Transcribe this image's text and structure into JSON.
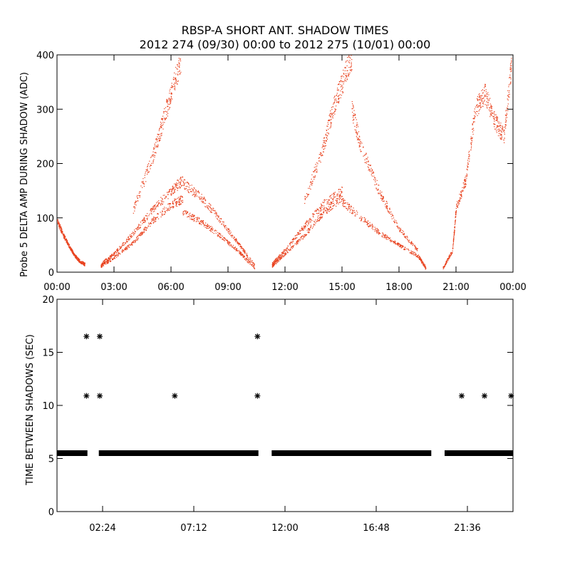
{
  "title_line1": "RBSP-A SHORT ANT. SHADOW TIMES",
  "title_line2": "2012 274 (09/30) 00:00 to 2012 275 (10/01) 00:00",
  "colors": {
    "amp_points": "#e8401c",
    "interval_points": "#000000",
    "axes": "#000000"
  },
  "chart_data": [
    {
      "type": "scatter",
      "title": "RBSP-A SHORT ANT. SHADOW TIMES",
      "ylabel": "Probe 5 DELTA AMP DURING SHADOW (ADC)",
      "xlabel": "",
      "xlim_hours": [
        0,
        24
      ],
      "ylim": [
        0,
        400
      ],
      "xticks": [
        "00:00",
        "03:00",
        "06:00",
        "09:00",
        "12:00",
        "15:00",
        "18:00",
        "21:00",
        "00:00"
      ],
      "yticks": [
        "0",
        "100",
        "200",
        "300",
        "400"
      ],
      "grid": false,
      "series": [
        {
          "branches": [
            {
              "x": [
                0.0,
                0.3,
                0.6,
                0.9,
                1.2,
                1.45
              ],
              "y": [
                95,
                70,
                50,
                32,
                20,
                15
              ]
            },
            {
              "x": [
                2.3,
                3.0,
                4.0,
                5.0,
                6.0,
                6.6
              ],
              "y": [
                12,
                28,
                55,
                95,
                125,
                135
              ]
            },
            {
              "x": [
                2.3,
                3.0,
                4.0,
                5.0,
                6.0,
                6.6
              ],
              "y": [
                16,
                35,
                72,
                115,
                150,
                170
              ]
            },
            {
              "x": [
                4.0,
                5.0,
                5.5,
                6.0,
                6.5
              ],
              "y": [
                115,
                210,
                270,
                330,
                390
              ]
            },
            {
              "x": [
                6.6,
                7.5,
                8.5,
                9.5,
                10.4
              ],
              "y": [
                110,
                95,
                70,
                40,
                8
              ]
            },
            {
              "x": [
                6.6,
                7.5,
                8.5,
                9.5,
                10.4
              ],
              "y": [
                165,
                140,
                100,
                55,
                12
              ]
            },
            {
              "x": [
                11.3,
                12.0,
                13.0,
                14.0,
                15.0
              ],
              "y": [
                12,
                35,
                68,
                110,
                140
              ]
            },
            {
              "x": [
                11.3,
                12.0,
                13.0,
                14.0,
                15.0
              ],
              "y": [
                15,
                42,
                85,
                125,
                150
              ]
            },
            {
              "x": [
                13.0,
                14.0,
                14.5,
                15.0,
                15.5
              ],
              "y": [
                130,
                230,
                300,
                350,
                395
              ]
            },
            {
              "x": [
                15.0,
                16.0,
                17.0,
                18.0,
                19.0,
                19.4
              ],
              "y": [
                130,
                100,
                72,
                50,
                30,
                8
              ]
            },
            {
              "x": [
                15.5,
                16.0,
                17.0,
                18.0,
                19.0
              ],
              "y": [
                300,
                230,
                145,
                80,
                40
              ]
            },
            {
              "x": [
                20.3,
                20.8,
                21.0,
                21.5,
                22.0,
                22.5,
                23.0,
                23.5,
                23.9
              ],
              "y": [
                8,
                40,
                120,
                170,
                300,
                330,
                280,
                250,
                380
              ]
            }
          ]
        }
      ]
    },
    {
      "type": "scatter",
      "ylabel": "TIME BETWEEN SHADOWS (SEC)",
      "xlabel": "",
      "xlim_hours": [
        0,
        24
      ],
      "ylim": [
        0,
        20
      ],
      "xticks": [
        "02:24",
        "07:12",
        "12:00",
        "16:48",
        "21:36"
      ],
      "xtick_hours": [
        2.4,
        7.2,
        12.0,
        16.8,
        21.6
      ],
      "yticks": [
        "0",
        "5",
        "10",
        "15",
        "20"
      ],
      "grid": false,
      "series": [
        {
          "segments": [
            [
              0.0,
              1.6
            ],
            [
              2.2,
              10.6
            ],
            [
              11.3,
              19.7
            ],
            [
              20.4,
              24.0
            ]
          ],
          "y": 5.5
        },
        {
          "x": [
            1.55,
            2.25,
            10.55,
            1.55,
            2.25,
            6.2,
            10.55,
            21.3,
            22.5,
            23.9
          ],
          "y": [
            16.5,
            16.5,
            16.5,
            10.9,
            10.9,
            10.9,
            10.9,
            10.9,
            10.9,
            10.9
          ]
        }
      ]
    }
  ]
}
